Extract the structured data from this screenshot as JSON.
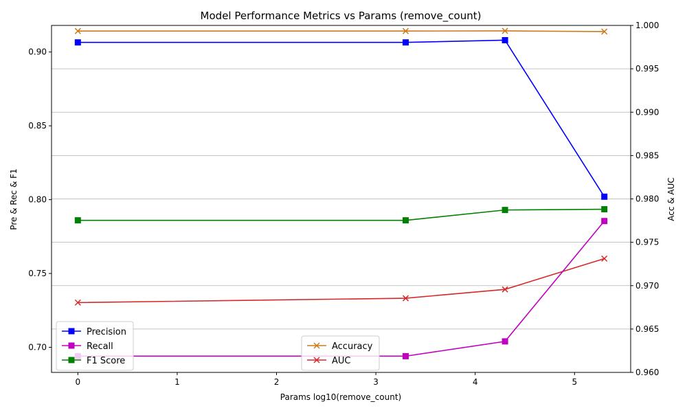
{
  "chart_data": {
    "type": "line",
    "title": "Model Performance Metrics vs Params (remove_count)",
    "xlabel": "Params log10(remove_count)",
    "ylabel_left": "Pre & Rec & F1",
    "ylabel_right": "Acc & AUC",
    "xlim": [
      -0.265,
      5.565
    ],
    "ylim_left": [
      0.683,
      0.918
    ],
    "ylim_right": [
      0.96,
      1.0
    ],
    "x_ticks": [
      0,
      1,
      2,
      3,
      4,
      5
    ],
    "x_tick_labels": [
      "0",
      "1",
      "2",
      "3",
      "4",
      "5"
    ],
    "y_left_ticks": [
      0.7,
      0.75,
      0.8,
      0.85,
      0.9
    ],
    "y_left_tick_labels": [
      "0.70",
      "0.75",
      "0.80",
      "0.85",
      "0.90"
    ],
    "y_right_ticks": [
      0.96,
      0.965,
      0.97,
      0.975,
      0.98,
      0.985,
      0.99,
      0.995,
      1.0
    ],
    "y_right_tick_labels": [
      "0.960",
      "0.965",
      "0.970",
      "0.975",
      "0.980",
      "0.985",
      "0.990",
      "0.995",
      "1.000"
    ],
    "grid": "horizontal lines on right axis",
    "x": [
      0,
      3.3,
      4.3,
      5.3
    ],
    "series_left": [
      {
        "name": "Precision",
        "color": "#0000ff",
        "marker": "square",
        "values": [
          0.9065,
          0.9065,
          0.908,
          0.802
        ]
      },
      {
        "name": "Recall",
        "color": "#bf00bf",
        "marker": "square",
        "values": [
          0.694,
          0.694,
          0.704,
          0.7855
        ]
      },
      {
        "name": "F1 Score",
        "color": "#008000",
        "marker": "square",
        "values": [
          0.786,
          0.786,
          0.793,
          0.7935
        ]
      }
    ],
    "series_right": [
      {
        "name": "Accuracy",
        "color": "#cc7a1a",
        "marker": "x",
        "values": [
          0.99935,
          0.99935,
          0.99937,
          0.99929
        ]
      },
      {
        "name": "AUC",
        "color": "#d62728",
        "marker": "x",
        "values": [
          0.96805,
          0.96855,
          0.96957,
          0.97312
        ]
      }
    ],
    "legend_left_placement": "lower-left",
    "legend_right_placement": "lower-center"
  }
}
